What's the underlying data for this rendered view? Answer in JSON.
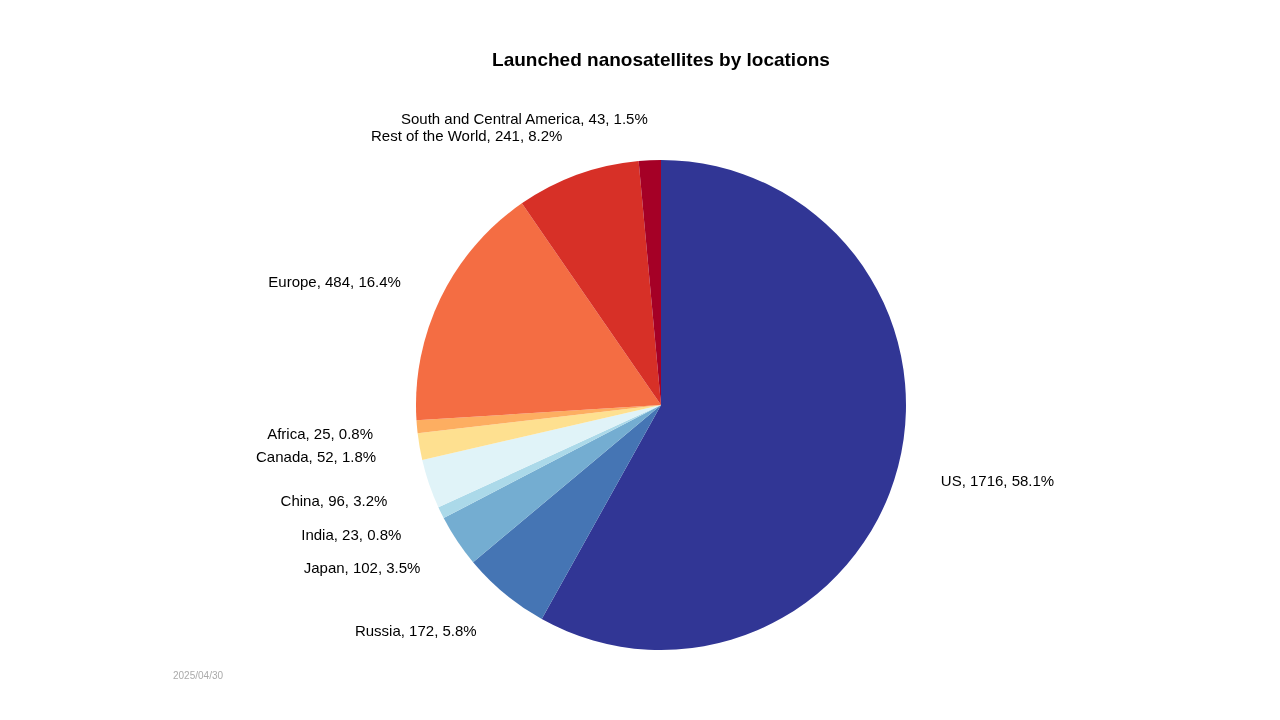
{
  "chart_data": {
    "type": "pie",
    "title": "Launched nanosatellites by locations",
    "categories": [
      "US",
      "Russia",
      "Japan",
      "India",
      "China",
      "Canada",
      "Africa",
      "Europe",
      "Rest of the World",
      "South and Central America"
    ],
    "values": [
      1716,
      172,
      102,
      23,
      96,
      52,
      25,
      484,
      241,
      43
    ],
    "value_labels": [
      "1716, 58.1%",
      "172, 5.8%",
      "102, 3.5%",
      "23, 0.8%",
      "96, 3.2%",
      "52, 1.8%",
      "25, 0.8%",
      "484, 16.4%",
      "241, 8.2%",
      "43, 1.5%"
    ],
    "colors": [
      "#313695",
      "#4575b4",
      "#74add1",
      "#abd9e9",
      "#e0f3f8",
      "#fee090",
      "#fdae61",
      "#f46d43",
      "#d73027",
      "#a50026"
    ],
    "annotations": [
      "2025/04/30"
    ]
  }
}
